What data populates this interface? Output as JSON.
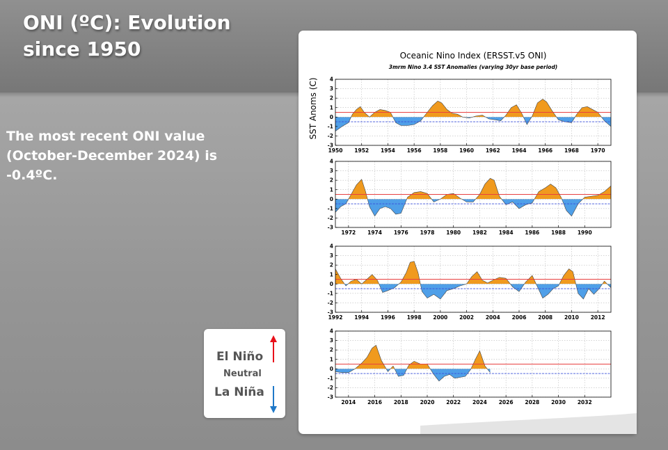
{
  "slide": {
    "title_line1": "ONI (ºC): Evolution",
    "title_line2": "since 1950",
    "body_line1": "The most recent ONI value",
    "body_line2": "(October-December 2024) is",
    "body_line3": "-0.4ºC."
  },
  "legend": {
    "el_nino": "El Niño",
    "neutral": "Neutral",
    "la_nina": "La Niña",
    "el_nino_color": "#e8101a",
    "la_nina_color": "#1f78c8"
  },
  "colors": {
    "positive_fill": "#f09a1e",
    "negative_fill": "#4f9fe8",
    "upper_threshold": "#e84040",
    "lower_threshold": "#3a4fd8"
  },
  "chart_data": {
    "type": "area",
    "title": "Oceanic Nino Index (ERSST.v5 ONI)",
    "subtitle": "3mrm Nino 3.4 SST Anomalies (varying 30yr base period)",
    "ylabel": "SST Anoms (C)",
    "ylim": [
      -3,
      4
    ],
    "yticks": [
      -3,
      -2,
      -1,
      0,
      1,
      2,
      3,
      4
    ],
    "thresholds": [
      0.5,
      -0.5
    ],
    "panels": [
      {
        "xlim": [
          1950,
          1971
        ],
        "xticks": [
          1950,
          1952,
          1954,
          1956,
          1958,
          1960,
          1962,
          1964,
          1966,
          1968,
          1970
        ],
        "years": [
          1950.0,
          1950.5,
          1951.0,
          1951.3,
          1951.6,
          1951.9,
          1952.2,
          1952.6,
          1953.0,
          1953.4,
          1953.8,
          1954.2,
          1954.6,
          1955.0,
          1955.5,
          1956.0,
          1956.5,
          1957.0,
          1957.4,
          1957.8,
          1958.1,
          1958.5,
          1958.9,
          1959.3,
          1959.7,
          1960.2,
          1960.7,
          1961.2,
          1961.7,
          1962.2,
          1962.6,
          1963.0,
          1963.4,
          1963.8,
          1964.2,
          1964.6,
          1965.0,
          1965.4,
          1965.8,
          1966.1,
          1966.5,
          1967.0,
          1967.5,
          1968.0,
          1968.4,
          1968.8,
          1969.2,
          1969.6,
          1970.0,
          1970.5,
          1971.0
        ],
        "values": [
          -1.5,
          -1.0,
          -0.6,
          0.3,
          0.8,
          1.1,
          0.5,
          0.0,
          0.5,
          0.8,
          0.7,
          0.5,
          -0.6,
          -0.9,
          -0.9,
          -0.8,
          -0.4,
          0.5,
          1.2,
          1.7,
          1.5,
          0.8,
          0.4,
          0.3,
          0.0,
          -0.1,
          0.1,
          0.2,
          -0.2,
          -0.3,
          -0.4,
          0.2,
          1.0,
          1.3,
          0.4,
          -0.8,
          0.1,
          1.5,
          1.9,
          1.6,
          0.7,
          -0.3,
          -0.5,
          -0.6,
          0.3,
          1.0,
          1.1,
          0.8,
          0.5,
          -0.4,
          -1.0
        ]
      },
      {
        "xlim": [
          1971,
          1992
        ],
        "xticks": [
          1972,
          1974,
          1976,
          1978,
          1980,
          1982,
          1984,
          1986,
          1988,
          1990
        ],
        "years": [
          1971.0,
          1971.4,
          1971.8,
          1972.2,
          1972.6,
          1973.0,
          1973.3,
          1973.6,
          1974.0,
          1974.4,
          1974.8,
          1975.2,
          1975.6,
          1976.0,
          1976.5,
          1977.0,
          1977.5,
          1978.0,
          1978.5,
          1979.0,
          1979.5,
          1980.0,
          1980.5,
          1981.0,
          1981.5,
          1982.0,
          1982.4,
          1982.8,
          1983.1,
          1983.5,
          1984.0,
          1984.5,
          1985.0,
          1985.5,
          1986.0,
          1986.5,
          1987.0,
          1987.4,
          1987.8,
          1988.2,
          1988.6,
          1989.0,
          1989.5,
          1990.0,
          1990.5,
          1991.0,
          1991.5,
          1992.0
        ],
        "values": [
          -1.4,
          -0.8,
          -0.5,
          0.5,
          1.5,
          2.1,
          0.8,
          -0.8,
          -1.8,
          -1.0,
          -0.8,
          -1.0,
          -1.6,
          -1.5,
          0.2,
          0.7,
          0.8,
          0.6,
          -0.3,
          0.0,
          0.5,
          0.6,
          0.1,
          -0.3,
          -0.3,
          0.5,
          1.6,
          2.2,
          2.0,
          0.3,
          -0.6,
          -0.3,
          -1.0,
          -0.6,
          -0.4,
          0.8,
          1.2,
          1.6,
          1.2,
          0.2,
          -1.2,
          -1.8,
          -0.5,
          0.2,
          0.3,
          0.4,
          0.8,
          1.4
        ]
      },
      {
        "xlim": [
          1992,
          2013
        ],
        "xticks": [
          1992,
          1994,
          1996,
          1998,
          2000,
          2002,
          2004,
          2006,
          2008,
          2010,
          2012
        ],
        "years": [
          1992.0,
          1992.4,
          1992.8,
          1993.2,
          1993.6,
          1994.0,
          1994.4,
          1994.8,
          1995.2,
          1995.6,
          1996.0,
          1996.5,
          1997.0,
          1997.4,
          1997.7,
          1998.0,
          1998.3,
          1998.6,
          1999.0,
          1999.5,
          2000.0,
          2000.5,
          2001.0,
          2001.5,
          2002.0,
          2002.4,
          2002.8,
          2003.2,
          2003.6,
          2004.0,
          2004.5,
          2005.0,
          2005.5,
          2006.0,
          2006.5,
          2007.0,
          2007.4,
          2007.8,
          2008.2,
          2008.6,
          2009.0,
          2009.4,
          2009.8,
          2010.1,
          2010.5,
          2010.9,
          2011.3,
          2011.7,
          2012.1,
          2012.5,
          2013.0
        ],
        "values": [
          1.6,
          0.6,
          -0.2,
          0.3,
          0.5,
          0.0,
          0.5,
          1.0,
          0.4,
          -0.9,
          -0.7,
          -0.4,
          0.2,
          1.2,
          2.3,
          2.4,
          1.2,
          -0.8,
          -1.5,
          -1.1,
          -1.6,
          -0.7,
          -0.5,
          -0.2,
          0.0,
          0.8,
          1.3,
          0.4,
          0.1,
          0.4,
          0.7,
          0.6,
          -0.3,
          -0.8,
          0.2,
          0.9,
          -0.3,
          -1.5,
          -1.1,
          -0.5,
          -0.2,
          0.9,
          1.6,
          1.3,
          -1.0,
          -1.6,
          -0.5,
          -1.1,
          -0.5,
          0.3,
          -0.4
        ]
      },
      {
        "xlim": [
          2013,
          2034
        ],
        "xticks": [
          2014,
          2016,
          2018,
          2020,
          2022,
          2024,
          2026,
          2028,
          2030,
          2032
        ],
        "years": [
          2013.0,
          2013.5,
          2014.0,
          2014.5,
          2015.0,
          2015.4,
          2015.8,
          2016.1,
          2016.5,
          2017.0,
          2017.4,
          2017.8,
          2018.2,
          2018.6,
          2019.0,
          2019.5,
          2020.0,
          2020.5,
          2020.9,
          2021.3,
          2021.7,
          2022.1,
          2022.5,
          2022.9,
          2023.3,
          2023.7,
          2024.0,
          2024.4,
          2024.8
        ],
        "values": [
          -0.3,
          -0.4,
          -0.4,
          0.0,
          0.6,
          1.2,
          2.2,
          2.5,
          0.9,
          -0.3,
          0.3,
          -0.8,
          -0.7,
          0.4,
          0.8,
          0.5,
          0.5,
          -0.6,
          -1.3,
          -0.8,
          -0.6,
          -1.0,
          -0.9,
          -0.8,
          -0.1,
          1.1,
          1.9,
          0.3,
          -0.4
        ]
      }
    ]
  }
}
